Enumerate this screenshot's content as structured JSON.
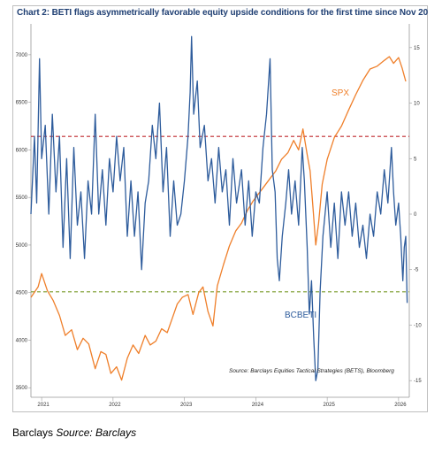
{
  "caption": {
    "prefix": "Barclays",
    "source_label": "Source: Barclays"
  },
  "chart_data": {
    "type": "line",
    "title": "Chart 2: BETI flags asymmetrically favorable equity upside conditions for the first time since Nov 20",
    "source_note": "Source: Barclays Equities Tactical Strategies (BETS), Bloomberg",
    "x_ticks": [
      "2021",
      "2022",
      "2023",
      "2024",
      "2025",
      "2026"
    ],
    "xlim": [
      2020.85,
      2026.15
    ],
    "left_axis": {
      "ticks": [
        3500,
        4000,
        4500,
        5000,
        5500,
        6000,
        6500,
        7000
      ],
      "ylim": [
        3400,
        7250
      ]
    },
    "right_axis": {
      "ticks": [
        15,
        10,
        5,
        0,
        -5,
        -10,
        -15
      ],
      "ylim": [
        -16.5,
        16.5
      ]
    },
    "grid": false,
    "series": [
      {
        "name": "SPX",
        "axis": "left",
        "color": "#ef7f2a",
        "points": [
          [
            2020.85,
            4450
          ],
          [
            2020.95,
            4560
          ],
          [
            2021.0,
            4700
          ],
          [
            2021.08,
            4520
          ],
          [
            2021.16,
            4420
          ],
          [
            2021.25,
            4260
          ],
          [
            2021.33,
            4050
          ],
          [
            2021.42,
            4110
          ],
          [
            2021.5,
            3900
          ],
          [
            2021.58,
            4020
          ],
          [
            2021.66,
            3960
          ],
          [
            2021.75,
            3700
          ],
          [
            2021.83,
            3880
          ],
          [
            2021.9,
            3850
          ],
          [
            2021.97,
            3650
          ],
          [
            2022.05,
            3720
          ],
          [
            2022.12,
            3580
          ],
          [
            2022.2,
            3810
          ],
          [
            2022.28,
            3950
          ],
          [
            2022.36,
            3860
          ],
          [
            2022.45,
            4050
          ],
          [
            2022.52,
            3950
          ],
          [
            2022.6,
            3990
          ],
          [
            2022.68,
            4120
          ],
          [
            2022.76,
            4080
          ],
          [
            2022.83,
            4230
          ],
          [
            2022.9,
            4380
          ],
          [
            2022.97,
            4450
          ],
          [
            2023.05,
            4480
          ],
          [
            2023.12,
            4270
          ],
          [
            2023.2,
            4500
          ],
          [
            2023.26,
            4560
          ],
          [
            2023.33,
            4300
          ],
          [
            2023.4,
            4150
          ],
          [
            2023.46,
            4570
          ],
          [
            2023.55,
            4800
          ],
          [
            2023.63,
            4990
          ],
          [
            2023.72,
            5150
          ],
          [
            2023.8,
            5230
          ],
          [
            2023.88,
            5360
          ],
          [
            2023.96,
            5460
          ],
          [
            2024.05,
            5550
          ],
          [
            2024.12,
            5620
          ],
          [
            2024.2,
            5700
          ],
          [
            2024.28,
            5780
          ],
          [
            2024.36,
            5900
          ],
          [
            2024.45,
            5970
          ],
          [
            2024.53,
            6100
          ],
          [
            2024.6,
            6000
          ],
          [
            2024.66,
            6220
          ],
          [
            2024.72,
            5950
          ],
          [
            2024.76,
            5780
          ],
          [
            2024.8,
            5400
          ],
          [
            2024.84,
            5000
          ],
          [
            2024.88,
            5230
          ],
          [
            2024.93,
            5640
          ],
          [
            2025.0,
            5900
          ],
          [
            2025.1,
            6130
          ],
          [
            2025.2,
            6250
          ],
          [
            2025.3,
            6420
          ],
          [
            2025.4,
            6580
          ],
          [
            2025.5,
            6730
          ],
          [
            2025.6,
            6850
          ],
          [
            2025.7,
            6880
          ],
          [
            2025.8,
            6940
          ],
          [
            2025.87,
            6980
          ],
          [
            2025.93,
            6910
          ],
          [
            2026.0,
            6970
          ],
          [
            2026.05,
            6860
          ],
          [
            2026.1,
            6720
          ]
        ]
      },
      {
        "name": "BCBETI",
        "axis": "right",
        "color": "#2e5c9c",
        "points": [
          [
            2020.85,
            0
          ],
          [
            2020.9,
            7
          ],
          [
            2020.93,
            1
          ],
          [
            2020.97,
            14
          ],
          [
            2021.0,
            5
          ],
          [
            2021.05,
            8
          ],
          [
            2021.1,
            0
          ],
          [
            2021.15,
            9
          ],
          [
            2021.2,
            2
          ],
          [
            2021.25,
            7
          ],
          [
            2021.3,
            -3
          ],
          [
            2021.35,
            5
          ],
          [
            2021.4,
            -4
          ],
          [
            2021.45,
            6
          ],
          [
            2021.5,
            -1
          ],
          [
            2021.55,
            2
          ],
          [
            2021.6,
            -4
          ],
          [
            2021.65,
            3
          ],
          [
            2021.7,
            0
          ],
          [
            2021.75,
            9
          ],
          [
            2021.8,
            0
          ],
          [
            2021.85,
            4
          ],
          [
            2021.9,
            -1
          ],
          [
            2021.95,
            5
          ],
          [
            2022.0,
            2
          ],
          [
            2022.05,
            7
          ],
          [
            2022.1,
            3
          ],
          [
            2022.15,
            6
          ],
          [
            2022.2,
            -2
          ],
          [
            2022.25,
            3
          ],
          [
            2022.3,
            -2
          ],
          [
            2022.35,
            2
          ],
          [
            2022.4,
            -5
          ],
          [
            2022.45,
            1
          ],
          [
            2022.5,
            3
          ],
          [
            2022.55,
            8
          ],
          [
            2022.6,
            5
          ],
          [
            2022.65,
            10
          ],
          [
            2022.7,
            2
          ],
          [
            2022.75,
            6
          ],
          [
            2022.8,
            -2
          ],
          [
            2022.85,
            3
          ],
          [
            2022.9,
            -1
          ],
          [
            2022.95,
            0
          ],
          [
            2023.0,
            3
          ],
          [
            2023.05,
            7
          ],
          [
            2023.08,
            11
          ],
          [
            2023.1,
            16
          ],
          [
            2023.13,
            9
          ],
          [
            2023.18,
            12
          ],
          [
            2023.22,
            6
          ],
          [
            2023.28,
            8
          ],
          [
            2023.33,
            3
          ],
          [
            2023.38,
            5
          ],
          [
            2023.43,
            1
          ],
          [
            2023.48,
            6
          ],
          [
            2023.53,
            2
          ],
          [
            2023.58,
            4
          ],
          [
            2023.63,
            -1
          ],
          [
            2023.68,
            5
          ],
          [
            2023.73,
            1
          ],
          [
            2023.8,
            4
          ],
          [
            2023.85,
            -1
          ],
          [
            2023.9,
            3
          ],
          [
            2023.95,
            -2
          ],
          [
            2024.0,
            2
          ],
          [
            2024.05,
            1
          ],
          [
            2024.1,
            6
          ],
          [
            2024.15,
            9
          ],
          [
            2024.2,
            14
          ],
          [
            2024.23,
            4
          ],
          [
            2024.27,
            2
          ],
          [
            2024.3,
            -4
          ],
          [
            2024.33,
            -6
          ],
          [
            2024.37,
            -2
          ],
          [
            2024.42,
            1
          ],
          [
            2024.46,
            4
          ],
          [
            2024.5,
            0
          ],
          [
            2024.55,
            3
          ],
          [
            2024.6,
            -1
          ],
          [
            2024.65,
            6
          ],
          [
            2024.68,
            3
          ],
          [
            2024.72,
            -3
          ],
          [
            2024.75,
            -9
          ],
          [
            2024.78,
            -6
          ],
          [
            2024.81,
            -11
          ],
          [
            2024.84,
            -15
          ],
          [
            2024.87,
            -14
          ],
          [
            2024.9,
            -7
          ],
          [
            2024.94,
            -2
          ],
          [
            2025.0,
            2
          ],
          [
            2025.05,
            -3
          ],
          [
            2025.1,
            1
          ],
          [
            2025.15,
            -4
          ],
          [
            2025.2,
            2
          ],
          [
            2025.25,
            -1
          ],
          [
            2025.3,
            2
          ],
          [
            2025.35,
            -2
          ],
          [
            2025.4,
            1
          ],
          [
            2025.45,
            -3
          ],
          [
            2025.5,
            -1
          ],
          [
            2025.55,
            -4
          ],
          [
            2025.6,
            0
          ],
          [
            2025.65,
            -2
          ],
          [
            2025.7,
            2
          ],
          [
            2025.75,
            0
          ],
          [
            2025.8,
            4
          ],
          [
            2025.85,
            1
          ],
          [
            2025.9,
            6
          ],
          [
            2025.93,
            2
          ],
          [
            2025.96,
            -1
          ],
          [
            2026.0,
            1
          ],
          [
            2026.03,
            -2
          ],
          [
            2026.06,
            -6
          ],
          [
            2026.08,
            -3
          ],
          [
            2026.1,
            -2
          ],
          [
            2026.12,
            -8
          ]
        ]
      }
    ],
    "reference_lines": [
      {
        "axis": "right",
        "value": 7,
        "color": "#c0282d",
        "style": "dashed"
      },
      {
        "axis": "right",
        "value": -7,
        "color": "#7a9a2a",
        "style": "dashed"
      }
    ]
  }
}
